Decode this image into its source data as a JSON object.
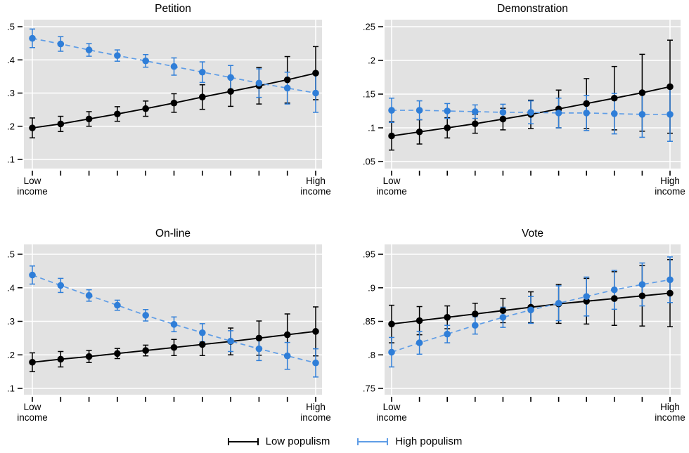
{
  "figure": {
    "legend": [
      {
        "label": "Low populism",
        "color": "#000000"
      },
      {
        "label": "High populism",
        "color": "#5f9de6"
      }
    ],
    "x_axis": {
      "first_tick_label": [
        "Low",
        "income"
      ],
      "last_tick_label": [
        "High",
        "income"
      ],
      "tick_count": 11
    }
  },
  "colors": {
    "black": "#000000",
    "blue_marker": "#2f7ed8",
    "blue_line": "#5f9de6",
    "plot_bg": "#e2e2e2",
    "grid": "#ffffff"
  },
  "chart_data": [
    {
      "type": "line",
      "title": "Petition",
      "x": "11 evenly spaced income levels, Low income to High income",
      "ytick_labels": [
        ".5",
        ".4",
        ".3",
        ".2",
        ".1"
      ],
      "yticks": [
        0.5,
        0.4,
        0.3,
        0.2,
        0.1
      ],
      "yrange": [
        0.0725,
        0.5212
      ],
      "series": [
        {
          "name": "Low populism",
          "style": "solid",
          "values": [
            0.195,
            0.207,
            0.222,
            0.237,
            0.253,
            0.27,
            0.288,
            0.305,
            0.322,
            0.34,
            0.36
          ],
          "ci_low": [
            0.165,
            0.184,
            0.2,
            0.215,
            0.23,
            0.242,
            0.251,
            0.26,
            0.267,
            0.27,
            0.28
          ],
          "ci_high": [
            0.225,
            0.23,
            0.244,
            0.259,
            0.276,
            0.298,
            0.325,
            0.35,
            0.377,
            0.41,
            0.44
          ]
        },
        {
          "name": "High populism",
          "style": "dashed",
          "values": [
            0.465,
            0.448,
            0.43,
            0.413,
            0.397,
            0.38,
            0.363,
            0.347,
            0.33,
            0.315,
            0.3
          ],
          "ci_low": [
            0.437,
            0.426,
            0.411,
            0.396,
            0.378,
            0.354,
            0.332,
            0.311,
            0.287,
            0.267,
            0.242
          ],
          "ci_high": [
            0.493,
            0.47,
            0.449,
            0.43,
            0.416,
            0.406,
            0.394,
            0.383,
            0.373,
            0.363,
            0.358
          ]
        }
      ]
    },
    {
      "type": "line",
      "title": "Demonstration",
      "x": "11 evenly spaced income levels, Low income to High income",
      "ytick_labels": [
        ".25",
        ".2",
        ".15",
        ".1",
        ".05"
      ],
      "yticks": [
        0.25,
        0.2,
        0.15,
        0.1,
        0.05
      ],
      "yrange": [
        0.0396,
        0.2604
      ],
      "series": [
        {
          "name": "Low populism",
          "style": "solid",
          "values": [
            0.088,
            0.094,
            0.1,
            0.106,
            0.113,
            0.12,
            0.128,
            0.136,
            0.144,
            0.152,
            0.161
          ],
          "ci_low": [
            0.067,
            0.076,
            0.085,
            0.092,
            0.097,
            0.099,
            0.1,
            0.099,
            0.097,
            0.095,
            0.092
          ],
          "ci_high": [
            0.109,
            0.112,
            0.115,
            0.12,
            0.129,
            0.141,
            0.156,
            0.173,
            0.191,
            0.209,
            0.23
          ]
        },
        {
          "name": "High populism",
          "style": "dashed",
          "values": [
            0.126,
            0.126,
            0.125,
            0.124,
            0.123,
            0.123,
            0.122,
            0.122,
            0.121,
            0.12,
            0.12
          ],
          "ci_low": [
            0.108,
            0.112,
            0.114,
            0.114,
            0.111,
            0.106,
            0.1,
            0.096,
            0.091,
            0.086,
            0.08
          ],
          "ci_high": [
            0.144,
            0.14,
            0.136,
            0.134,
            0.135,
            0.14,
            0.144,
            0.148,
            0.151,
            0.154,
            0.16
          ]
        }
      ]
    },
    {
      "type": "line",
      "title": "On-line",
      "x": "11 evenly spaced income levels, Low income to High income",
      "ytick_labels": [
        ".5",
        ".4",
        ".3",
        ".2",
        ".1"
      ],
      "yticks": [
        0.5,
        0.4,
        0.3,
        0.2,
        0.1
      ],
      "yrange": [
        0.0812,
        0.5293
      ],
      "series": [
        {
          "name": "Low populism",
          "style": "solid",
          "values": [
            0.178,
            0.187,
            0.195,
            0.204,
            0.213,
            0.222,
            0.231,
            0.24,
            0.25,
            0.26,
            0.27
          ],
          "ci_low": [
            0.15,
            0.164,
            0.177,
            0.189,
            0.197,
            0.198,
            0.198,
            0.2,
            0.199,
            0.198,
            0.197
          ],
          "ci_high": [
            0.206,
            0.21,
            0.213,
            0.219,
            0.229,
            0.246,
            0.264,
            0.28,
            0.301,
            0.322,
            0.343
          ]
        },
        {
          "name": "High populism",
          "style": "dashed",
          "values": [
            0.438,
            0.407,
            0.377,
            0.348,
            0.318,
            0.291,
            0.266,
            0.241,
            0.218,
            0.197,
            0.176
          ],
          "ci_low": [
            0.411,
            0.386,
            0.36,
            0.333,
            0.301,
            0.269,
            0.239,
            0.21,
            0.183,
            0.157,
            0.134
          ],
          "ci_high": [
            0.465,
            0.428,
            0.394,
            0.363,
            0.335,
            0.313,
            0.293,
            0.272,
            0.253,
            0.237,
            0.218
          ]
        }
      ]
    },
    {
      "type": "line",
      "title": "Vote",
      "x": "11 evenly spaced income levels, Low income to High income",
      "ytick_labels": [
        ".95",
        ".9",
        ".85",
        ".8",
        ".75"
      ],
      "yticks": [
        0.95,
        0.9,
        0.85,
        0.8,
        0.75
      ],
      "yrange": [
        0.7406,
        0.9647
      ],
      "series": [
        {
          "name": "Low populism",
          "style": "solid",
          "values": [
            0.846,
            0.851,
            0.856,
            0.861,
            0.866,
            0.871,
            0.876,
            0.88,
            0.884,
            0.888,
            0.892
          ],
          "ci_low": [
            0.818,
            0.83,
            0.839,
            0.845,
            0.848,
            0.848,
            0.847,
            0.846,
            0.844,
            0.843,
            0.842
          ],
          "ci_high": [
            0.874,
            0.872,
            0.873,
            0.877,
            0.884,
            0.894,
            0.905,
            0.914,
            0.924,
            0.933,
            0.942
          ]
        },
        {
          "name": "High populism",
          "style": "dashed",
          "values": [
            0.804,
            0.818,
            0.831,
            0.844,
            0.856,
            0.867,
            0.877,
            0.887,
            0.897,
            0.905,
            0.912
          ],
          "ci_low": [
            0.782,
            0.801,
            0.818,
            0.831,
            0.841,
            0.847,
            0.851,
            0.858,
            0.868,
            0.873,
            0.878
          ],
          "ci_high": [
            0.826,
            0.835,
            0.844,
            0.857,
            0.871,
            0.887,
            0.903,
            0.916,
            0.926,
            0.937,
            0.946
          ]
        }
      ]
    }
  ]
}
